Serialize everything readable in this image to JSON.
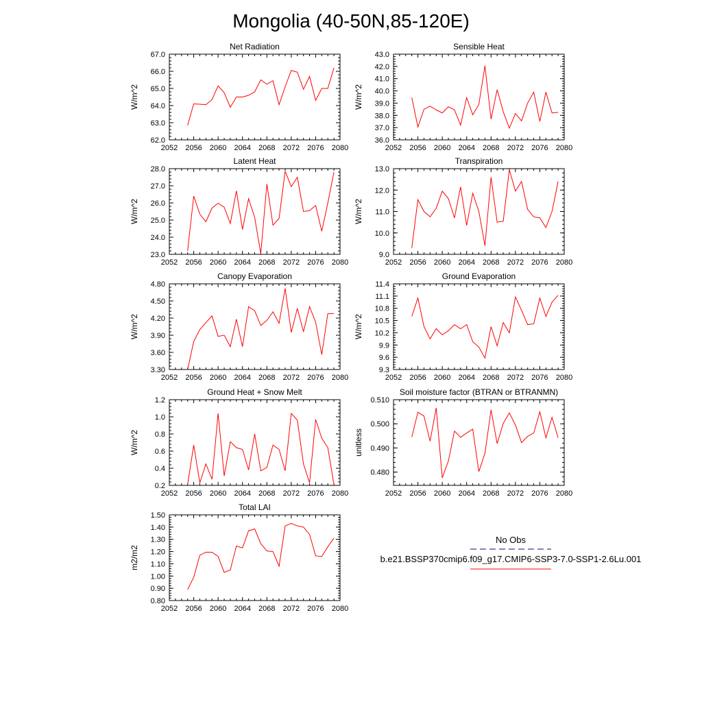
{
  "page_title": "Mongolia (40-50N,85-120E)",
  "legend": {
    "obs_label": "No Obs",
    "case_label": "b.e21.BSSP370cmip6.f09_g17.CMIP6-SSP3-7.0-SSP1-2.6Lu.001",
    "obs_color": "#3c3c8c",
    "case_color": "#ff0000"
  },
  "years": [
    2055,
    2056,
    2057,
    2058,
    2059,
    2060,
    2061,
    2062,
    2063,
    2064,
    2065,
    2066,
    2067,
    2068,
    2069,
    2070,
    2071,
    2072,
    2073,
    2074,
    2075,
    2076,
    2077,
    2078,
    2079
  ],
  "x_ticks": [
    "2052",
    "2056",
    "2060",
    "2064",
    "2068",
    "2072",
    "2076",
    "2080"
  ],
  "chart_data": [
    {
      "type": "line",
      "title": "Net Radiation",
      "ylabel": "W/m^2",
      "xlim": [
        2052,
        2080
      ],
      "ylim": [
        62.0,
        67.0
      ],
      "y_ticks": [
        "62.0",
        "63.0",
        "64.0",
        "65.0",
        "66.0",
        "67.0"
      ],
      "series": [
        {
          "values": [
            62.85,
            64.1,
            64.08,
            64.05,
            64.35,
            65.15,
            64.75,
            63.9,
            64.5,
            64.5,
            64.6,
            64.8,
            65.5,
            65.25,
            65.45,
            64.05,
            65.1,
            66.05,
            65.95,
            64.95,
            65.7,
            64.3,
            65.0,
            65.0,
            66.2
          ]
        }
      ]
    },
    {
      "type": "line",
      "title": "Sensible Heat",
      "ylabel": "W/m^2",
      "xlim": [
        2052,
        2080
      ],
      "ylim": [
        36.0,
        43.0
      ],
      "y_ticks": [
        "36.0",
        "37.0",
        "38.0",
        "39.0",
        "40.0",
        "41.0",
        "42.0",
        "43.0"
      ],
      "series": [
        {
          "values": [
            39.45,
            37.05,
            38.5,
            38.75,
            38.45,
            38.2,
            38.7,
            38.45,
            37.2,
            39.45,
            38.05,
            38.9,
            42.05,
            37.7,
            40.1,
            38.3,
            36.95,
            38.15,
            37.55,
            39.0,
            39.9,
            37.5,
            39.9,
            38.2,
            38.25
          ]
        }
      ]
    },
    {
      "type": "line",
      "title": "Latent Heat",
      "ylabel": "W/m^2",
      "xlim": [
        2052,
        2080
      ],
      "ylim": [
        23.0,
        28.0
      ],
      "y_ticks": [
        "23.0",
        "24.0",
        "25.0",
        "26.0",
        "27.0",
        "28.0"
      ],
      "series": [
        {
          "values": [
            23.2,
            26.4,
            25.35,
            24.9,
            25.7,
            25.98,
            25.75,
            24.8,
            26.7,
            24.45,
            26.25,
            25.15,
            23.05,
            27.1,
            24.7,
            25.1,
            27.85,
            26.95,
            27.5,
            25.5,
            25.55,
            25.85,
            24.35,
            26.0,
            27.8
          ]
        }
      ]
    },
    {
      "type": "line",
      "title": "Transpiration",
      "ylabel": "W/m^2",
      "xlim": [
        2052,
        2080
      ],
      "ylim": [
        9.0,
        13.0
      ],
      "y_ticks": [
        "9.0",
        "10.0",
        "11.0",
        "12.0",
        "13.0"
      ],
      "series": [
        {
          "values": [
            9.3,
            11.55,
            11.0,
            10.75,
            11.15,
            11.95,
            11.6,
            10.7,
            12.15,
            10.35,
            11.85,
            11.0,
            9.4,
            12.6,
            10.5,
            10.55,
            12.95,
            11.95,
            12.4,
            11.1,
            10.75,
            10.7,
            10.25,
            11.0,
            12.4
          ]
        }
      ]
    },
    {
      "type": "line",
      "title": "Canopy Evaporation",
      "ylabel": "W/m^2",
      "xlim": [
        2052,
        2080
      ],
      "ylim": [
        3.3,
        4.8
      ],
      "y_ticks": [
        "3.30",
        "3.60",
        "3.90",
        "4.20",
        "4.50",
        "4.80"
      ],
      "series": [
        {
          "values": [
            3.3,
            3.79,
            4.0,
            4.12,
            4.24,
            3.88,
            3.9,
            3.7,
            4.18,
            3.7,
            4.4,
            4.33,
            4.07,
            4.16,
            4.31,
            4.11,
            4.72,
            3.95,
            4.37,
            3.96,
            4.4,
            4.13,
            3.56,
            4.28,
            4.28
          ]
        }
      ]
    },
    {
      "type": "line",
      "title": "Ground Evaporation",
      "ylabel": "W/m^2",
      "xlim": [
        2052,
        2080
      ],
      "ylim": [
        9.3,
        11.4
      ],
      "y_ticks": [
        "9.3",
        "9.6",
        "9.9",
        "10.2",
        "10.5",
        "10.8",
        "11.1",
        "11.4"
      ],
      "series": [
        {
          "values": [
            10.6,
            11.05,
            10.35,
            10.05,
            10.3,
            10.15,
            10.25,
            10.4,
            10.3,
            10.4,
            9.98,
            9.85,
            9.58,
            10.35,
            9.88,
            10.45,
            10.2,
            11.08,
            10.75,
            10.4,
            10.42,
            11.05,
            10.6,
            10.95,
            11.12
          ]
        }
      ]
    },
    {
      "type": "line",
      "title": "Ground Heat + Snow Melt",
      "ylabel": "W/m^2",
      "xlim": [
        2052,
        2080
      ],
      "ylim": [
        0.2,
        1.2
      ],
      "y_ticks": [
        "0.2",
        "0.4",
        "0.6",
        "0.8",
        "1.0",
        "1.2"
      ],
      "series": [
        {
          "values": [
            0.21,
            0.67,
            0.23,
            0.45,
            0.27,
            1.04,
            0.31,
            0.71,
            0.64,
            0.62,
            0.38,
            0.8,
            0.37,
            0.41,
            0.67,
            0.62,
            0.37,
            1.04,
            0.96,
            0.45,
            0.23,
            0.97,
            0.75,
            0.64,
            0.21
          ]
        }
      ]
    },
    {
      "type": "line",
      "title": "Soil moisture factor (BTRAN or BTRANMN)",
      "ylabel": "unitless",
      "xlim": [
        2052,
        2080
      ],
      "ylim": [
        0.4745,
        0.51
      ],
      "y_ticks": [
        "0.480",
        "0.490",
        "0.500",
        "0.510"
      ],
      "series": [
        {
          "values": [
            0.4945,
            0.5048,
            0.5032,
            0.4928,
            0.5066,
            0.4776,
            0.4846,
            0.497,
            0.4944,
            0.4962,
            0.4978,
            0.4802,
            0.4878,
            0.5058,
            0.4918,
            0.5002,
            0.5045,
            0.4995,
            0.4922,
            0.4948,
            0.4962,
            0.505,
            0.4942,
            0.5027,
            0.4942
          ]
        }
      ]
    },
    {
      "type": "line",
      "title": "Total LAI",
      "ylabel": "m2/m2",
      "xlim": [
        2052,
        2080
      ],
      "ylim": [
        0.8,
        1.5
      ],
      "y_ticks": [
        "0.80",
        "0.90",
        "1.00",
        "1.10",
        "1.20",
        "1.30",
        "1.40",
        "1.50"
      ],
      "series": [
        {
          "values": [
            0.89,
            0.99,
            1.17,
            1.195,
            1.195,
            1.16,
            1.03,
            1.05,
            1.245,
            1.23,
            1.37,
            1.385,
            1.265,
            1.205,
            1.2,
            1.08,
            1.41,
            1.43,
            1.41,
            1.4,
            1.34,
            1.165,
            1.16,
            1.24,
            1.31
          ]
        }
      ]
    }
  ]
}
